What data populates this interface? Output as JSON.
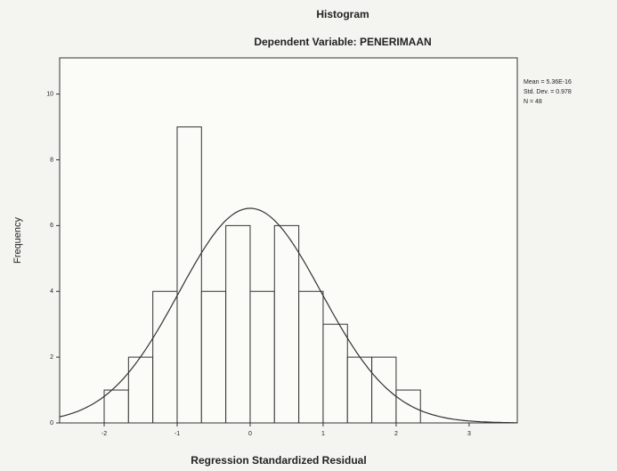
{
  "chart_data": {
    "type": "histogram",
    "title": "Histogram",
    "subtitle": "Dependent Variable: PENERIMAAN",
    "x_label": "Regression Standardized Residual",
    "y_label": "Frequency",
    "bins": [
      -2,
      -1.6667,
      -1.3333,
      -1,
      -0.6667,
      -0.3333,
      0,
      0.3333,
      0.6667,
      1,
      1.3333,
      1.6667,
      2,
      2.3333
    ],
    "values": [
      1,
      2,
      4,
      9,
      4,
      6,
      4,
      6,
      4,
      3,
      2,
      2,
      1
    ],
    "color": "#fbfbf8",
    "xlim": [
      -2.61,
      3.66
    ],
    "xticks": [
      -2,
      -1,
      0,
      1,
      2,
      3
    ],
    "ylim": [
      0,
      11.1
    ],
    "yticks": [
      0,
      2,
      4,
      6,
      8,
      10
    ],
    "stats": [
      {
        "text": "Mean = 5.36E-16",
        "value": 5.36e-16
      },
      {
        "text": "Std. Dev. = 0.978",
        "value": 0.978
      },
      {
        "text": "N = 48",
        "value": 48
      }
    ]
  }
}
